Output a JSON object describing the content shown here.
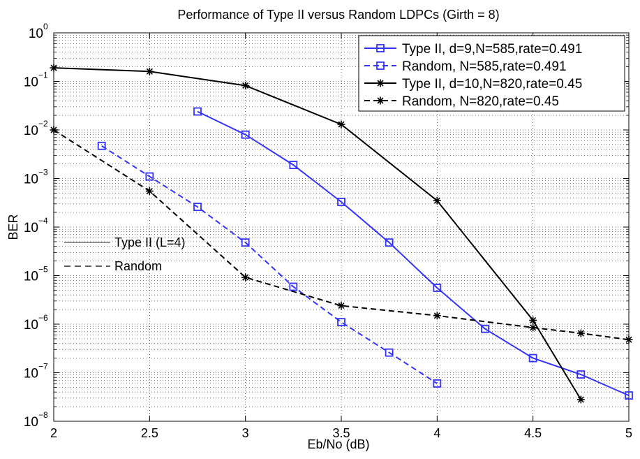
{
  "chart_data": {
    "type": "line",
    "title": "Performance of Type II versus Random LDPCs (Girth = 8)",
    "xlabel": "Eb/No (dB)",
    "ylabel": "BER",
    "xlim": [
      2,
      5
    ],
    "ylim_exponent": [
      -8,
      0
    ],
    "y_scale": "log",
    "grid": true,
    "x_ticks": [
      {
        "value": 2,
        "label": "2"
      },
      {
        "value": 2.5,
        "label": "2.5"
      },
      {
        "value": 3,
        "label": "3"
      },
      {
        "value": 3.5,
        "label": "3.5"
      },
      {
        "value": 4,
        "label": "4"
      },
      {
        "value": 4.5,
        "label": "4.5"
      },
      {
        "value": 5,
        "label": "5"
      }
    ],
    "y_ticks": [
      {
        "exp": 0,
        "base": "10",
        "sup": "0"
      },
      {
        "exp": -1,
        "base": "10",
        "sup": "−1"
      },
      {
        "exp": -2,
        "base": "10",
        "sup": "−2"
      },
      {
        "exp": -3,
        "base": "10",
        "sup": "−3"
      },
      {
        "exp": -4,
        "base": "10",
        "sup": "−4"
      },
      {
        "exp": -5,
        "base": "10",
        "sup": "−5"
      },
      {
        "exp": -6,
        "base": "10",
        "sup": "−6"
      },
      {
        "exp": -7,
        "base": "10",
        "sup": "−7"
      },
      {
        "exp": -8,
        "base": "10",
        "sup": "−8"
      }
    ],
    "legend_position": "top-right",
    "series": [
      {
        "name": "Type II, d=9,N=585,rate=0.491",
        "color": "#3333ff",
        "dash": "solid",
        "marker": "square",
        "x": [
          2.75,
          3,
          3.25,
          3.5,
          3.75,
          4,
          4.25,
          4.5,
          4.75,
          5
        ],
        "y": [
          0.024,
          0.008,
          0.0019,
          0.00033,
          4.8e-05,
          5.6e-06,
          8e-07,
          2e-07,
          9.2e-08,
          3.4e-08
        ]
      },
      {
        "name": "Random, N=585,rate=0.491",
        "color": "#3333ff",
        "dash": "dashed",
        "marker": "square",
        "x": [
          2.25,
          2.5,
          2.75,
          3,
          3.25,
          3.5,
          3.75,
          4
        ],
        "y": [
          0.0047,
          0.0011,
          0.00026,
          4.8e-05,
          5.9e-06,
          1.1e-06,
          2.6e-07,
          6e-08
        ]
      },
      {
        "name": "Type II, d=10,N=820,rate=0.45",
        "color": "#000000",
        "dash": "solid",
        "marker": "asterisk",
        "x": [
          2,
          2.5,
          3,
          3.5,
          4,
          4.5,
          4.75
        ],
        "y": [
          0.19,
          0.16,
          0.082,
          0.013,
          0.00035,
          1.2e-06,
          2.8e-08
        ]
      },
      {
        "name": "Random, N=820,rate=0.45",
        "color": "#000000",
        "dash": "dashed",
        "marker": "asterisk",
        "x": [
          2,
          2.5,
          3,
          3.5,
          4,
          4.5,
          4.75,
          5
        ],
        "y": [
          0.01,
          0.00055,
          9.2e-06,
          2.4e-06,
          1.5e-06,
          8.5e-07,
          6.5e-07,
          4.8e-07
        ]
      }
    ],
    "annotations": [
      {
        "text": "Type II (L=4)",
        "dash": "solid",
        "color": "#555555"
      },
      {
        "text": "Random",
        "dash": "dashed",
        "color": "#000000"
      }
    ]
  }
}
